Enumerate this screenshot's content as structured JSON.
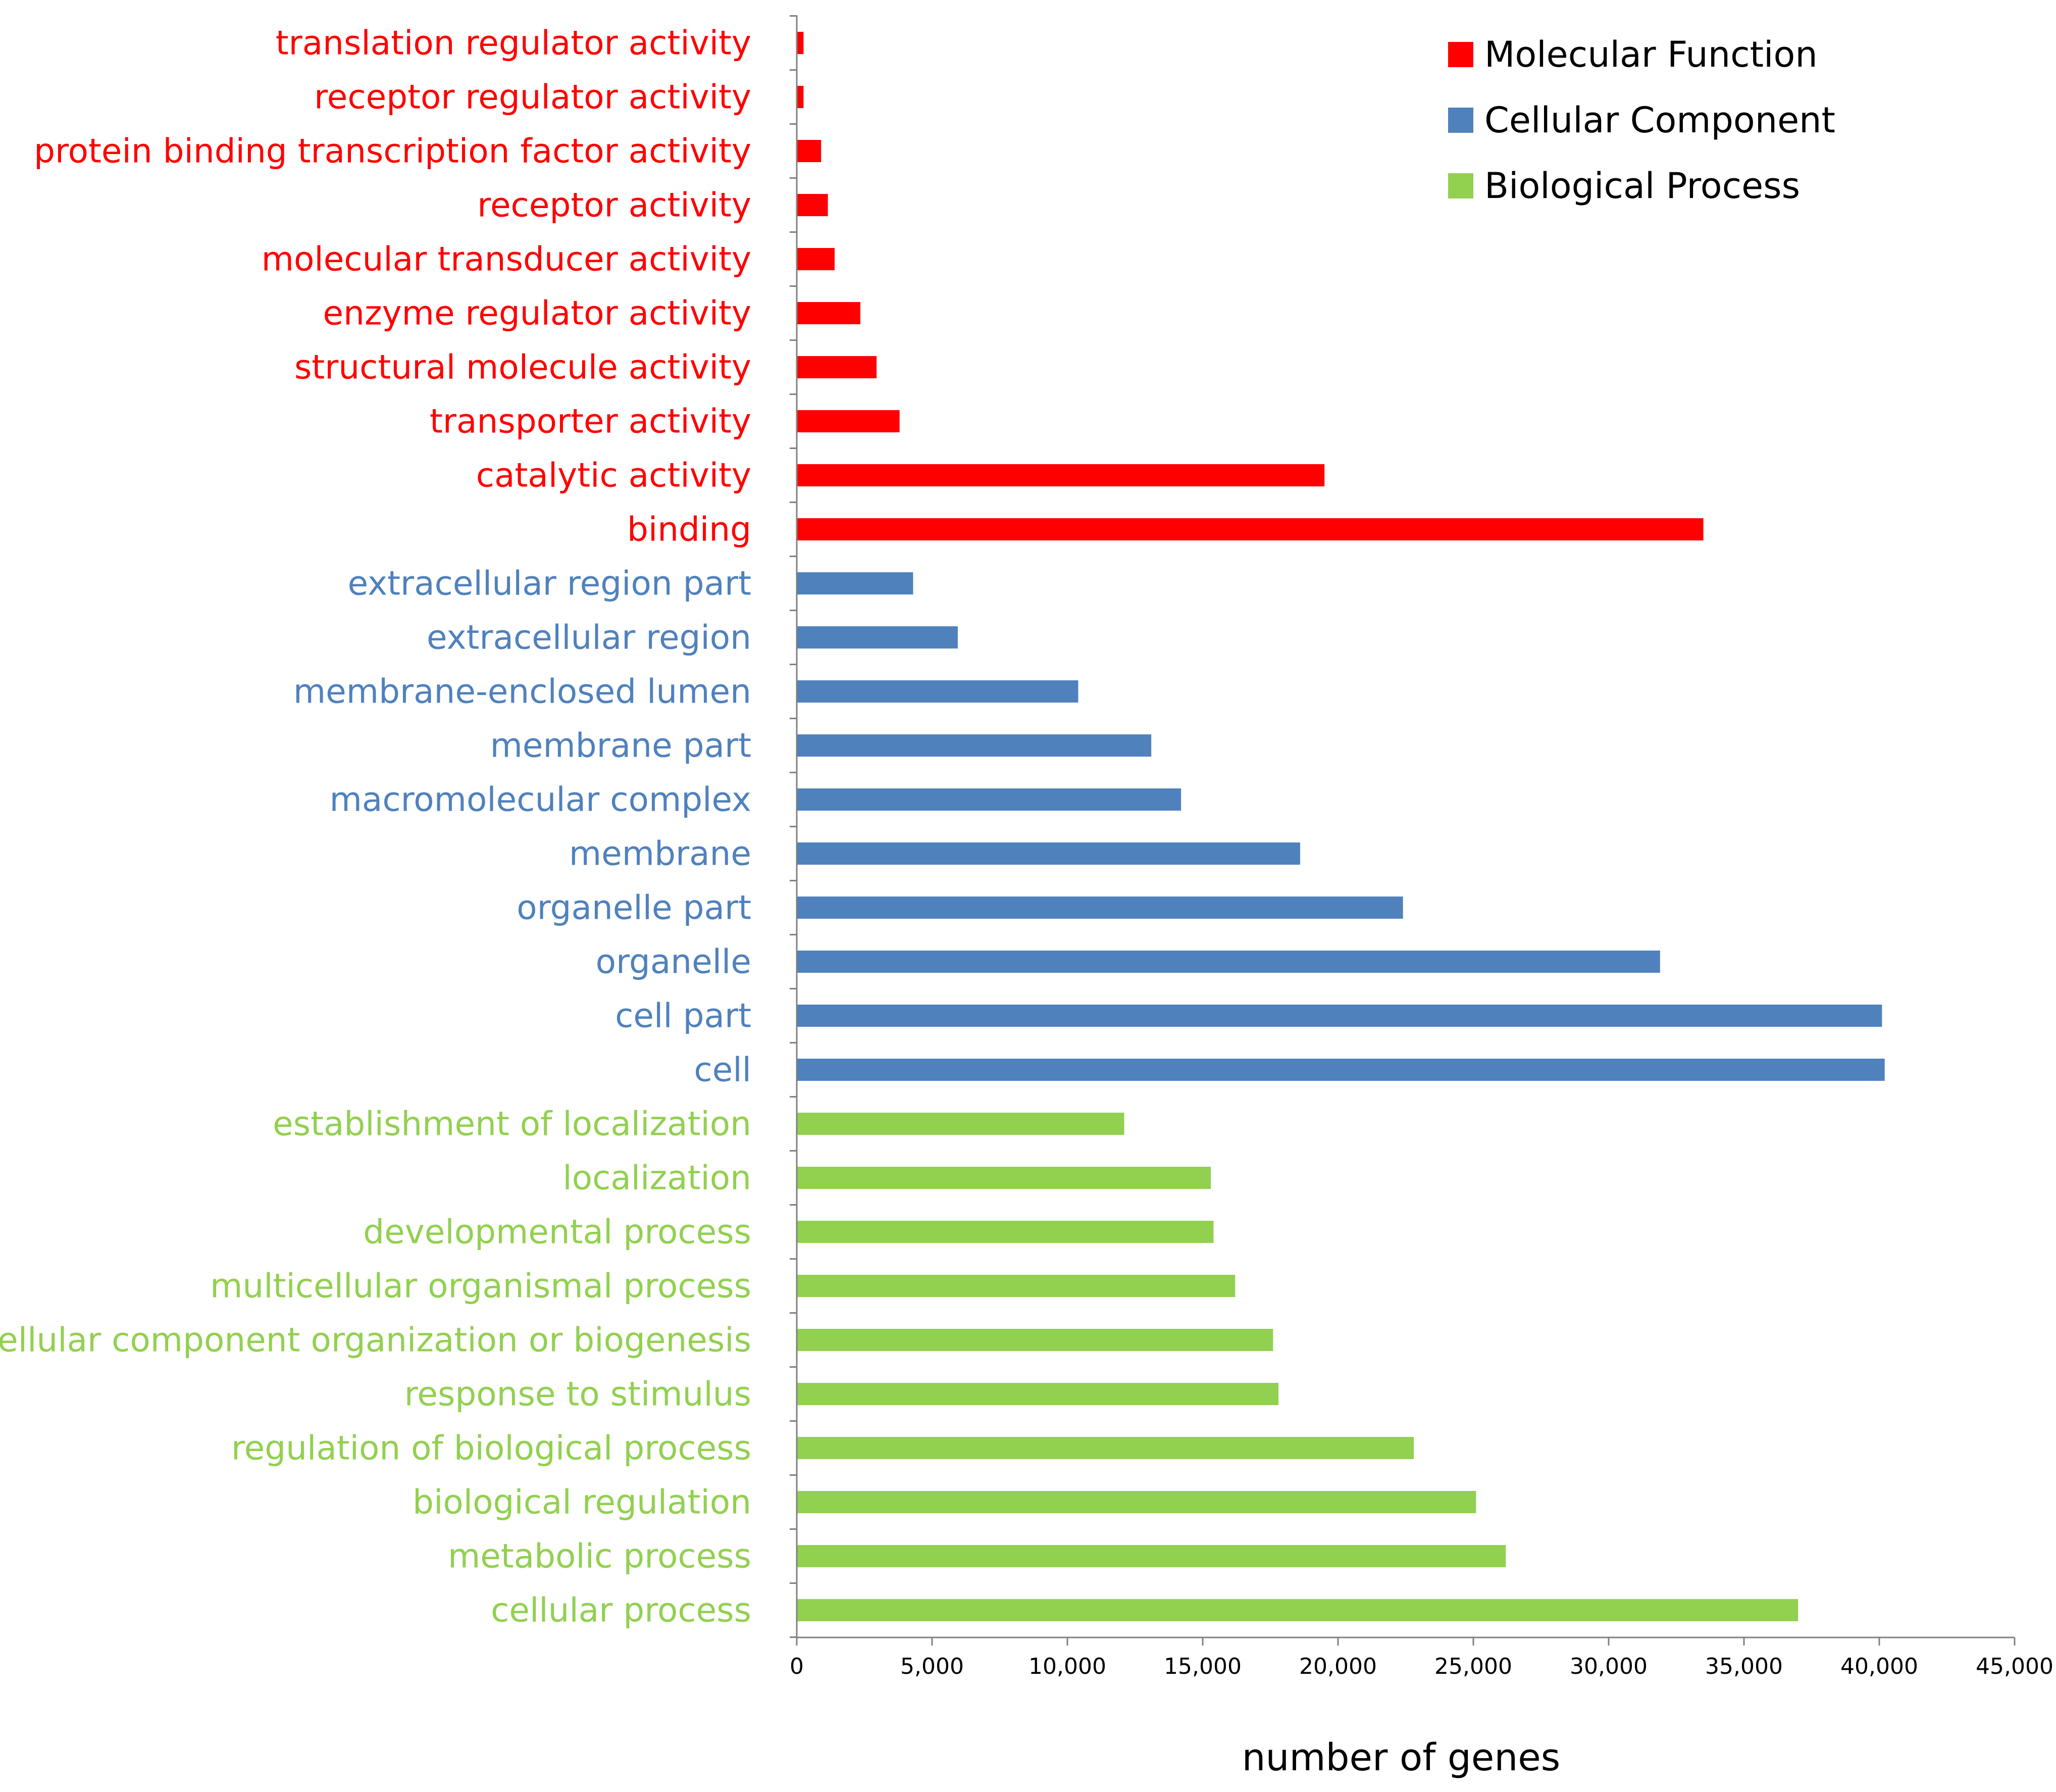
{
  "chart_data": {
    "type": "bar",
    "orientation": "horizontal",
    "title": "",
    "xlabel": "number of genes",
    "ylabel": "",
    "xlim": [
      0,
      45000
    ],
    "xticks": [
      0,
      5000,
      10000,
      15000,
      20000,
      25000,
      30000,
      35000,
      40000,
      45000
    ],
    "xtick_labels": [
      "0",
      "5,000",
      "10,000",
      "15,000",
      "20,000",
      "25,000",
      "30,000",
      "35,000",
      "40,000",
      "45,000"
    ],
    "grid": false,
    "legend_position": "top-right",
    "series": [
      {
        "name": "Molecular Function",
        "color": "#ff0000"
      },
      {
        "name": "Cellular Component",
        "color": "#4f81bd"
      },
      {
        "name": "Biological Process",
        "color": "#92d050"
      }
    ],
    "categories": [
      {
        "label": "translation regulator activity",
        "value": 250,
        "series": "Molecular Function"
      },
      {
        "label": "receptor regulator activity",
        "value": 250,
        "series": "Molecular Function"
      },
      {
        "label": "protein binding transcription factor activity",
        "value": 900,
        "series": "Molecular Function"
      },
      {
        "label": "receptor activity",
        "value": 1150,
        "series": "Molecular Function"
      },
      {
        "label": "molecular transducer activity",
        "value": 1400,
        "series": "Molecular Function"
      },
      {
        "label": "enzyme regulator activity",
        "value": 2350,
        "series": "Molecular Function"
      },
      {
        "label": "structural molecule activity",
        "value": 2950,
        "series": "Molecular Function"
      },
      {
        "label": "transporter activity",
        "value": 3800,
        "series": "Molecular Function"
      },
      {
        "label": "catalytic activity",
        "value": 19500,
        "series": "Molecular Function"
      },
      {
        "label": "binding",
        "value": 33500,
        "series": "Molecular Function"
      },
      {
        "label": "extracellular region part",
        "value": 4300,
        "series": "Cellular Component"
      },
      {
        "label": "extracellular region",
        "value": 5950,
        "series": "Cellular Component"
      },
      {
        "label": "membrane-enclosed lumen",
        "value": 10400,
        "series": "Cellular Component"
      },
      {
        "label": "membrane part",
        "value": 13100,
        "series": "Cellular Component"
      },
      {
        "label": "macromolecular complex",
        "value": 14200,
        "series": "Cellular Component"
      },
      {
        "label": "membrane",
        "value": 18600,
        "series": "Cellular Component"
      },
      {
        "label": "organelle part",
        "value": 22400,
        "series": "Cellular Component"
      },
      {
        "label": "organelle",
        "value": 31900,
        "series": "Cellular Component"
      },
      {
        "label": "cell part",
        "value": 40100,
        "series": "Cellular Component"
      },
      {
        "label": "cell",
        "value": 40200,
        "series": "Cellular Component"
      },
      {
        "label": "establishment of localization",
        "value": 12100,
        "series": "Biological Process"
      },
      {
        "label": "localization",
        "value": 15300,
        "series": "Biological Process"
      },
      {
        "label": "developmental process",
        "value": 15400,
        "series": "Biological Process"
      },
      {
        "label": "multicellular organismal process",
        "value": 16200,
        "series": "Biological Process"
      },
      {
        "label": "cellular component organization or biogenesis",
        "value": 17600,
        "series": "Biological Process"
      },
      {
        "label": "response to stimulus",
        "value": 17800,
        "series": "Biological Process"
      },
      {
        "label": "regulation of biological process",
        "value": 22800,
        "series": "Biological Process"
      },
      {
        "label": "biological regulation",
        "value": 25100,
        "series": "Biological Process"
      },
      {
        "label": "metabolic process",
        "value": 26200,
        "series": "Biological Process"
      },
      {
        "label": "cellular process",
        "value": 37000,
        "series": "Biological Process"
      }
    ]
  }
}
